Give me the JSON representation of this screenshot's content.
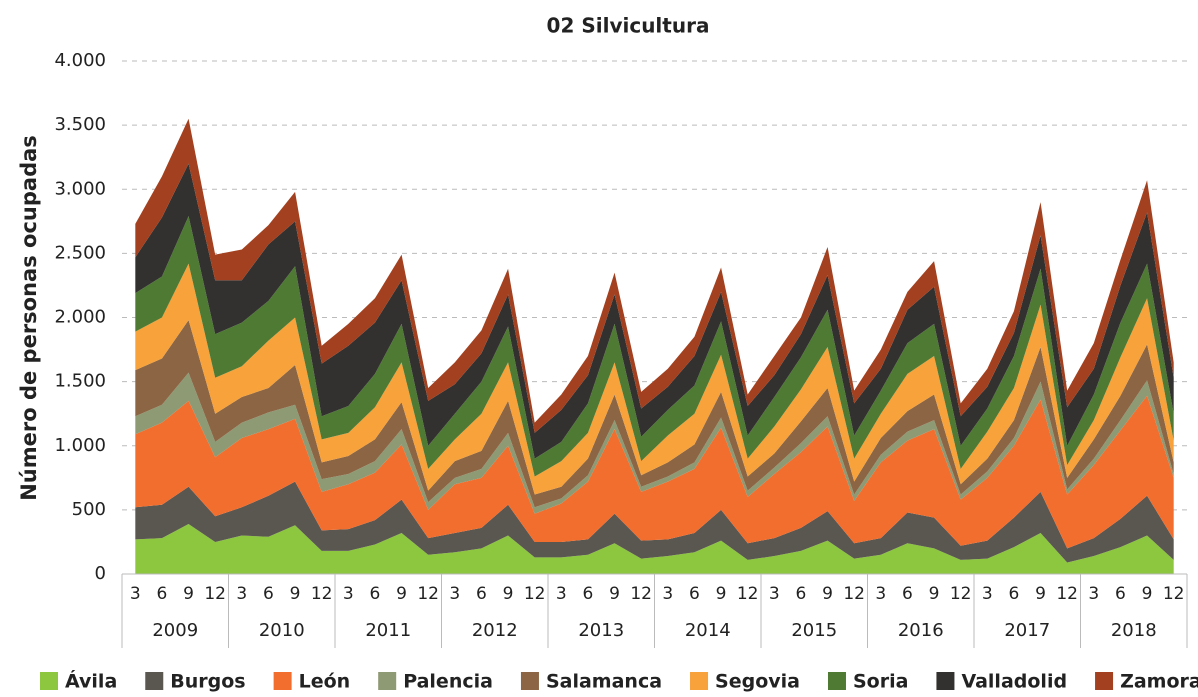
{
  "chart_data": {
    "type": "stacked_area",
    "title": "02 Silvicultura",
    "y_label": "Número de personas ocupadas",
    "categories": [
      "3",
      "6",
      "9",
      "12",
      "3",
      "6",
      "9",
      "12",
      "3",
      "6",
      "9",
      "12",
      "3",
      "6",
      "9",
      "12",
      "3",
      "6",
      "9",
      "12",
      "3",
      "6",
      "9",
      "12",
      "3",
      "6",
      "9",
      "12",
      "3",
      "6",
      "9",
      "12",
      "3",
      "6",
      "9",
      "12",
      "3",
      "6",
      "9",
      "12"
    ],
    "groups": [
      "2009",
      "2010",
      "2011",
      "2012",
      "2013",
      "2014",
      "2015",
      "2016",
      "2017",
      "2018"
    ],
    "ylim": [
      0,
      4000
    ],
    "yticks": [
      0,
      500,
      {
        "value": 1000,
        "label": "1.000"
      },
      {
        "value": 1500,
        "label": "1.500"
      },
      {
        "value": 2000,
        "label": "2.000"
      },
      {
        "value": 2500,
        "label": "2.500"
      },
      {
        "value": 3000,
        "label": "3.000"
      },
      {
        "value": 3500,
        "label": "3.500"
      },
      {
        "value": 4000,
        "label": "4.000"
      }
    ],
    "grid": true,
    "legend": "bottom",
    "series": [
      {
        "name": "Ávila",
        "color": "#8dc63f",
        "values": [
          270,
          280,
          390,
          250,
          300,
          290,
          380,
          180,
          180,
          230,
          320,
          150,
          170,
          200,
          300,
          130,
          130,
          150,
          240,
          120,
          140,
          170,
          260,
          110,
          140,
          180,
          260,
          120,
          150,
          240,
          200,
          110,
          120,
          210,
          320,
          90,
          140,
          210,
          300,
          110
        ]
      },
      {
        "name": "Burgos",
        "color": "#5a5650",
        "values": [
          250,
          260,
          290,
          200,
          220,
          320,
          340,
          160,
          170,
          190,
          260,
          130,
          150,
          160,
          240,
          120,
          120,
          120,
          230,
          140,
          130,
          150,
          240,
          130,
          140,
          180,
          230,
          120,
          130,
          240,
          240,
          110,
          140,
          230,
          320,
          110,
          140,
          220,
          310,
          160
        ]
      },
      {
        "name": "León",
        "color": "#f26e2e",
        "values": [
          570,
          640,
          670,
          460,
          540,
          520,
          490,
          300,
          350,
          370,
          430,
          220,
          380,
          390,
          460,
          220,
          300,
          450,
          660,
          380,
          450,
          500,
          640,
          360,
          500,
          590,
          660,
          330,
          590,
          560,
          690,
          360,
          490,
          560,
          720,
          420,
          570,
          690,
          780,
          480
        ]
      },
      {
        "name": "Palencia",
        "color": "#8e9a74",
        "values": [
          140,
          140,
          220,
          120,
          120,
          130,
          110,
          100,
          80,
          90,
          120,
          60,
          50,
          70,
          100,
          50,
          40,
          50,
          70,
          40,
          40,
          50,
          80,
          50,
          50,
          70,
          80,
          50,
          60,
          70,
          70,
          40,
          50,
          60,
          140,
          40,
          50,
          80,
          120,
          30
        ]
      },
      {
        "name": "Salamanca",
        "color": "#8b6544",
        "values": [
          360,
          360,
          410,
          220,
          200,
          190,
          310,
          130,
          140,
          170,
          210,
          90,
          130,
          140,
          250,
          100,
          90,
          130,
          200,
          90,
          110,
          140,
          200,
          110,
          110,
          170,
          220,
          100,
          130,
          160,
          200,
          80,
          100,
          140,
          270,
          90,
          150,
          190,
          280,
          90
        ]
      },
      {
        "name": "Segovia",
        "color": "#f7a23a",
        "values": [
          300,
          320,
          440,
          280,
          240,
          370,
          370,
          180,
          180,
          250,
          310,
          170,
          170,
          290,
          300,
          140,
          200,
          200,
          250,
          110,
          210,
          240,
          290,
          140,
          210,
          250,
          320,
          180,
          190,
          290,
          300,
          120,
          210,
          250,
          330,
          100,
          150,
          300,
          360,
          170
        ]
      },
      {
        "name": "Soria",
        "color": "#4e7a34",
        "values": [
          300,
          320,
          370,
          340,
          340,
          310,
          400,
          180,
          210,
          260,
          300,
          180,
          200,
          250,
          280,
          140,
          150,
          230,
          300,
          190,
          200,
          220,
          260,
          180,
          230,
          250,
          290,
          180,
          180,
          240,
          250,
          180,
          180,
          250,
          280,
          150,
          200,
          270,
          270,
          210
        ]
      },
      {
        "name": "Valladolid",
        "color": "#333130",
        "values": [
          280,
          460,
          410,
          420,
          330,
          440,
          350,
          410,
          470,
          400,
          340,
          350,
          230,
          220,
          250,
          200,
          250,
          220,
          230,
          220,
          180,
          230,
          230,
          230,
          170,
          180,
          270,
          250,
          170,
          260,
          290,
          230,
          170,
          180,
          260,
          300,
          200,
          290,
          400,
          280
        ]
      },
      {
        "name": "Zamora",
        "color": "#a3401f",
        "values": [
          260,
          320,
          350,
          200,
          240,
          150,
          230,
          140,
          170,
          190,
          200,
          100,
          170,
          180,
          200,
          80,
          120,
          150,
          170,
          130,
          140,
          150,
          190,
          90,
          150,
          130,
          220,
          100,
          150,
          140,
          200,
          100,
          140,
          170,
          260,
          130,
          200,
          200,
          250,
          120
        ]
      }
    ]
  }
}
